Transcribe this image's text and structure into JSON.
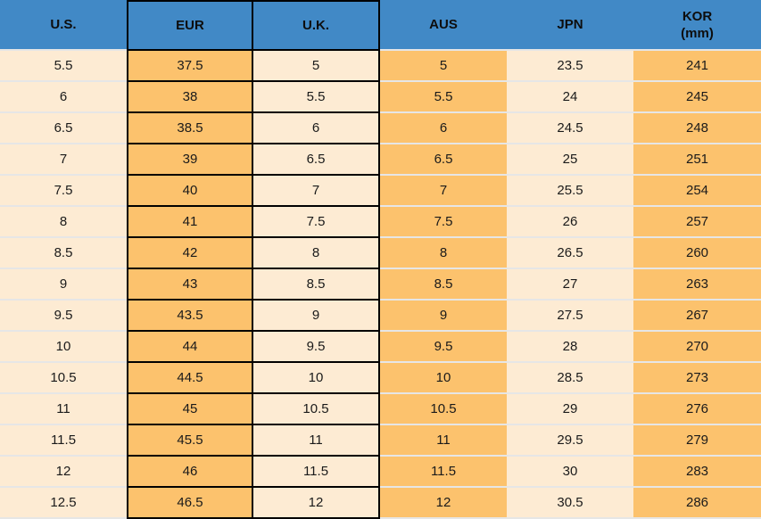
{
  "chart_data": {
    "type": "table",
    "columns": [
      {
        "key": "us",
        "label": "U.S."
      },
      {
        "key": "eur",
        "label": "EUR"
      },
      {
        "key": "uk",
        "label": "U.K."
      },
      {
        "key": "aus",
        "label": "AUS"
      },
      {
        "key": "jpn",
        "label": "JPN"
      },
      {
        "key": "kor",
        "label": "KOR",
        "label_line2": "(mm)"
      }
    ],
    "rows": [
      [
        5.5,
        37.5,
        5,
        5,
        23.5,
        241
      ],
      [
        6,
        38,
        5.5,
        5.5,
        24,
        245
      ],
      [
        6.5,
        38.5,
        6,
        6,
        24.5,
        248
      ],
      [
        7,
        39,
        6.5,
        6.5,
        25,
        251
      ],
      [
        7.5,
        40,
        7,
        7,
        25.5,
        254
      ],
      [
        8,
        41,
        7.5,
        7.5,
        26,
        257
      ],
      [
        8.5,
        42,
        8,
        8,
        26.5,
        260
      ],
      [
        9,
        43,
        8.5,
        8.5,
        27,
        263
      ],
      [
        9.5,
        43.5,
        9,
        9,
        27.5,
        267
      ],
      [
        10,
        44,
        9.5,
        9.5,
        28,
        270
      ],
      [
        10.5,
        44.5,
        10,
        10,
        28.5,
        273
      ],
      [
        11,
        45,
        10.5,
        10.5,
        29,
        276
      ],
      [
        11.5,
        45.5,
        11,
        11,
        29.5,
        279
      ],
      [
        12,
        46,
        11.5,
        11.5,
        30,
        283
      ],
      [
        12.5,
        46.5,
        12,
        12,
        30.5,
        286
      ]
    ]
  },
  "colors": {
    "header_bg": "#4189c6",
    "header_text": "#0d0d0d",
    "body_text": "#1a1a1a",
    "orange_cell": "#fcc26d",
    "cream_cell": "#fdebd3",
    "grid_black": "#000000",
    "separator_light": "#e6e6e6"
  }
}
